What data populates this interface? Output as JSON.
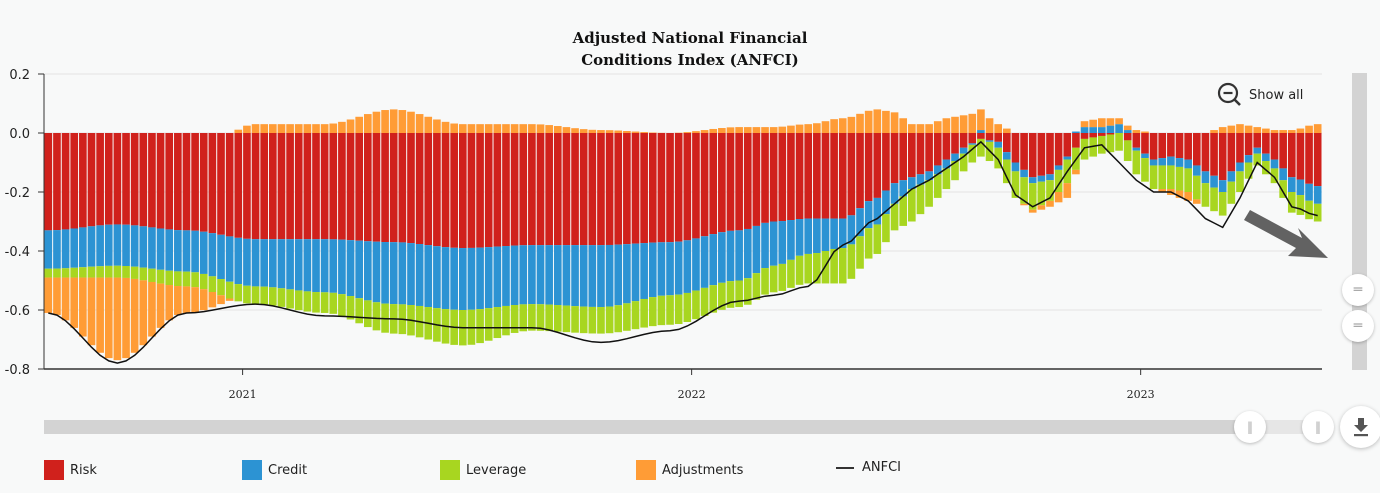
{
  "title_lines": [
    "Adjusted National Financial",
    "Conditions Index (ANFCI)"
  ],
  "controls": {
    "show_all_label": "Show all",
    "download_label": "download"
  },
  "legend": [
    {
      "name": "Risk",
      "color": "#d0211c"
    },
    {
      "name": "Credit",
      "color": "#2c93d3"
    },
    {
      "name": "Leverage",
      "color": "#a8d620"
    },
    {
      "name": "Adjustments",
      "color": "#ff9c36"
    },
    {
      "name": "ANFCI",
      "color": "#111111"
    }
  ],
  "chart_data": {
    "type": "bar",
    "stacked": true,
    "title": "Adjusted National Financial Conditions Index (ANFCI)",
    "frequency": "weekly",
    "x_start": "2020-07-24",
    "x_tick_labels": [
      "2021",
      "2022",
      "2023"
    ],
    "x_tick_weeks": [
      23,
      75,
      127
    ],
    "ylim": [
      -0.8,
      0.2
    ],
    "y_tick_labels": [
      "0.2",
      "0.0",
      "-0.2",
      "-0.4",
      "-0.6",
      "-0.8"
    ],
    "y_ticks": [
      0.2,
      0.0,
      -0.2,
      -0.4,
      -0.6,
      -0.8
    ],
    "grid": true,
    "legend_position": "bottom",
    "series": [
      {
        "name": "Risk",
        "color": "#d0211c",
        "keyweeks": [
          0,
          8,
          16,
          24,
          32,
          40,
          48,
          56,
          64,
          72,
          80,
          84,
          88,
          92,
          96,
          98,
          100,
          102,
          104,
          106,
          108,
          110,
          112,
          114,
          116,
          118,
          120,
          122,
          124,
          126,
          128,
          130,
          132,
          134,
          136,
          138,
          140,
          142,
          144,
          147
        ],
        "values": [
          -0.33,
          -0.31,
          -0.33,
          -0.36,
          -0.36,
          -0.37,
          -0.39,
          -0.38,
          -0.38,
          -0.37,
          -0.33,
          -0.3,
          -0.29,
          -0.29,
          -0.22,
          -0.17,
          -0.15,
          -0.13,
          -0.09,
          -0.05,
          -0.02,
          -0.03,
          -0.1,
          -0.15,
          -0.14,
          -0.08,
          -0.02,
          -0.01,
          0.0,
          -0.05,
          -0.09,
          -0.08,
          -0.09,
          -0.13,
          -0.16,
          -0.1,
          -0.05,
          -0.09,
          -0.15,
          -0.18
        ]
      },
      {
        "name": "Credit",
        "color": "#2c93d3",
        "keyweeks": [
          0,
          8,
          16,
          24,
          32,
          40,
          48,
          56,
          64,
          72,
          80,
          84,
          88,
          92,
          96,
          98,
          100,
          102,
          104,
          106,
          108,
          110,
          112,
          114,
          116,
          118,
          120,
          122,
          124,
          126,
          128,
          130,
          132,
          134,
          136,
          138,
          140,
          142,
          144,
          147
        ],
        "values": [
          -0.13,
          -0.14,
          -0.14,
          -0.16,
          -0.18,
          -0.21,
          -0.21,
          -0.2,
          -0.21,
          -0.18,
          -0.17,
          -0.15,
          -0.12,
          -0.1,
          -0.09,
          -0.07,
          -0.04,
          -0.03,
          -0.03,
          -0.02,
          0.01,
          -0.02,
          -0.03,
          -0.02,
          -0.02,
          -0.01,
          0.02,
          0.02,
          0.03,
          -0.01,
          -0.02,
          -0.03,
          -0.03,
          -0.04,
          -0.04,
          -0.03,
          -0.02,
          -0.03,
          -0.05,
          -0.06
        ]
      },
      {
        "name": "Leverage",
        "color": "#a8d620",
        "keyweeks": [
          0,
          8,
          16,
          24,
          32,
          40,
          48,
          56,
          64,
          72,
          80,
          84,
          88,
          92,
          96,
          98,
          100,
          102,
          104,
          106,
          108,
          110,
          112,
          114,
          116,
          118,
          120,
          122,
          124,
          126,
          128,
          130,
          132,
          134,
          136,
          138,
          140,
          142,
          144,
          147
        ],
        "values": [
          -0.03,
          -0.04,
          -0.05,
          -0.06,
          -0.07,
          -0.1,
          -0.12,
          -0.09,
          -0.09,
          -0.1,
          -0.09,
          -0.09,
          -0.1,
          -0.12,
          -0.1,
          -0.09,
          -0.11,
          -0.09,
          -0.07,
          -0.06,
          -0.06,
          -0.07,
          -0.09,
          -0.09,
          -0.07,
          -0.08,
          -0.07,
          -0.06,
          -0.06,
          -0.08,
          -0.08,
          -0.08,
          -0.08,
          -0.08,
          -0.08,
          -0.07,
          -0.04,
          -0.05,
          -0.07,
          -0.06
        ]
      },
      {
        "name": "Adjustments",
        "color": "#ff9c36",
        "keyweeks": [
          0,
          8,
          16,
          24,
          32,
          40,
          48,
          56,
          64,
          72,
          80,
          84,
          88,
          92,
          96,
          98,
          100,
          102,
          104,
          106,
          108,
          110,
          112,
          114,
          116,
          118,
          120,
          122,
          124,
          126,
          128,
          130,
          132,
          134,
          136,
          138,
          140,
          142,
          144,
          147
        ],
        "values": [
          -0.12,
          -0.28,
          -0.09,
          0.03,
          0.03,
          0.08,
          0.03,
          0.03,
          0.01,
          0.0,
          0.02,
          0.02,
          0.03,
          0.05,
          0.08,
          0.07,
          0.03,
          0.03,
          0.05,
          0.06,
          0.07,
          0.03,
          0.0,
          -0.01,
          -0.02,
          -0.05,
          0.02,
          0.03,
          0.02,
          0.01,
          0.0,
          -0.02,
          -0.03,
          0.0,
          0.02,
          0.03,
          0.02,
          0.01,
          0.01,
          0.03
        ]
      },
      {
        "name": "ANFCI",
        "type": "line",
        "color": "#111111",
        "keyweeks": [
          0,
          8,
          16,
          24,
          32,
          40,
          48,
          56,
          64,
          72,
          80,
          84,
          88,
          92,
          96,
          98,
          100,
          102,
          104,
          106,
          108,
          110,
          112,
          114,
          116,
          118,
          120,
          122,
          124,
          126,
          128,
          130,
          132,
          134,
          136,
          138,
          140,
          142,
          144,
          147
        ],
        "values": [
          -0.61,
          -0.78,
          -0.61,
          -0.58,
          -0.62,
          -0.63,
          -0.66,
          -0.66,
          -0.71,
          -0.67,
          -0.57,
          -0.55,
          -0.52,
          -0.38,
          -0.29,
          -0.24,
          -0.19,
          -0.16,
          -0.12,
          -0.08,
          -0.03,
          -0.09,
          -0.21,
          -0.25,
          -0.22,
          -0.13,
          -0.05,
          -0.04,
          -0.1,
          -0.16,
          -0.2,
          -0.2,
          -0.23,
          -0.29,
          -0.32,
          -0.22,
          -0.1,
          -0.15,
          -0.25,
          -0.28
        ]
      }
    ]
  }
}
